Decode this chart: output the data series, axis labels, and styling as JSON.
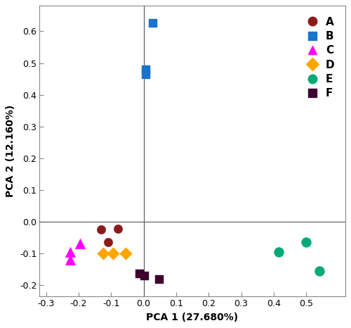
{
  "xlabel": "PCA 1 (27.680%)",
  "ylabel": "PCA 2 (12.160%)",
  "xlim": [
    -0.32,
    0.62
  ],
  "ylim": [
    -0.235,
    0.68
  ],
  "xticks": [
    -0.3,
    -0.2,
    -0.1,
    0.0,
    0.1,
    0.2,
    0.3,
    0.4,
    0.5
  ],
  "yticks": [
    -0.2,
    -0.1,
    0.0,
    0.1,
    0.2,
    0.3,
    0.4,
    0.5,
    0.6
  ],
  "groups": {
    "A": {
      "color": "#8B1A1A",
      "marker": "o",
      "size": 80,
      "x": [
        -0.13,
        -0.11,
        -0.08
      ],
      "y": [
        -0.025,
        -0.065,
        -0.022
      ]
    },
    "B": {
      "color": "#1874CD",
      "marker": "s",
      "size": 70,
      "x": [
        0.028,
        0.008,
        0.008
      ],
      "y": [
        0.625,
        0.478,
        0.463
      ]
    },
    "C": {
      "color": "#FF00FF",
      "marker": "^",
      "size": 110,
      "x": [
        -0.195,
        -0.225,
        -0.225
      ],
      "y": [
        -0.068,
        -0.095,
        -0.12
      ]
    },
    "D": {
      "color": "#FFA500",
      "marker": "D",
      "size": 80,
      "x": [
        -0.125,
        -0.095,
        -0.055
      ],
      "y": [
        -0.1,
        -0.1,
        -0.1
      ]
    },
    "E": {
      "color": "#00AA77",
      "marker": "o",
      "size": 100,
      "x": [
        0.415,
        0.5,
        0.54
      ],
      "y": [
        -0.095,
        -0.065,
        -0.155
      ]
    },
    "F": {
      "color": "#3D0030",
      "marker": "s",
      "size": 70,
      "x": [
        -0.012,
        0.002,
        0.048
      ],
      "y": [
        -0.165,
        -0.17,
        -0.182
      ]
    }
  },
  "legend_labels": [
    "A",
    "B",
    "C",
    "D",
    "E",
    "F"
  ],
  "legend_colors": [
    "#8B1A1A",
    "#1874CD",
    "#FF00FF",
    "#FFA500",
    "#00AA77",
    "#3D0030"
  ],
  "legend_markers": [
    "o",
    "s",
    "^",
    "D",
    "o",
    "s"
  ],
  "spine_color": "#888888",
  "crosshair_color": "#555555",
  "tick_fontsize": 9,
  "label_fontsize": 10,
  "legend_fontsize": 11
}
